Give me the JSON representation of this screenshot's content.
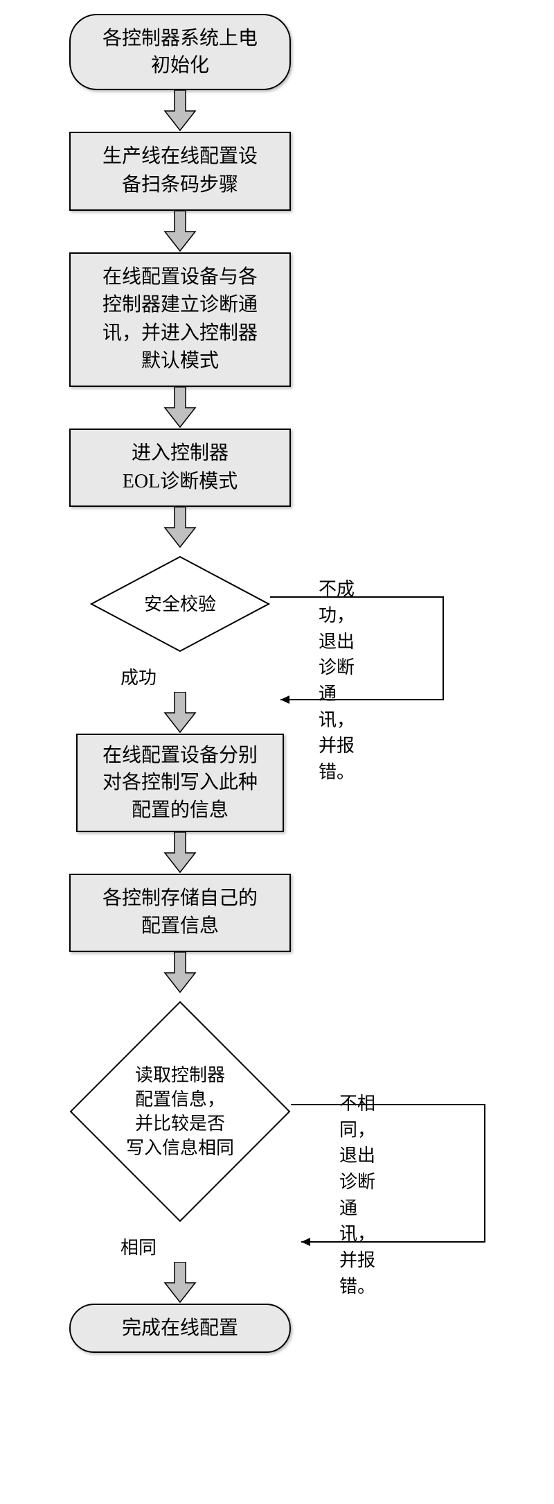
{
  "flow": {
    "start": "各控制器系统上电\n初始化",
    "step_scan": "生产线在线配置设\n备扫条码步骤",
    "step_diag": "在线配置设备与各\n控制器建立诊断通\n讯，并进入控制器\n默认模式",
    "step_eol": "进入控制器\nEOL诊断模式",
    "decision_sec": "安全校验",
    "sec_fail": "不成功，退出诊断\n通讯，并报错。",
    "sec_ok": "成功",
    "step_write": "在线配置设备分别\n对各控制写入此种\n配置的信息",
    "step_store": "各控制存储自己的\n配置信息",
    "decision_read": "读取控制器\n配置信息，\n并比较是否\n写入信息相同",
    "read_fail": "不相同，退出诊断\n通讯，并报错。",
    "read_ok": "相同",
    "end": "完成在线配置"
  },
  "style": {
    "node_fill": "#e8e8e8",
    "node_border": "#000000",
    "arrow_fill": "#c0c0c0",
    "arrow_border": "#000000",
    "bg": "#ffffff",
    "font_size_main": 28,
    "font_size_label": 26
  }
}
